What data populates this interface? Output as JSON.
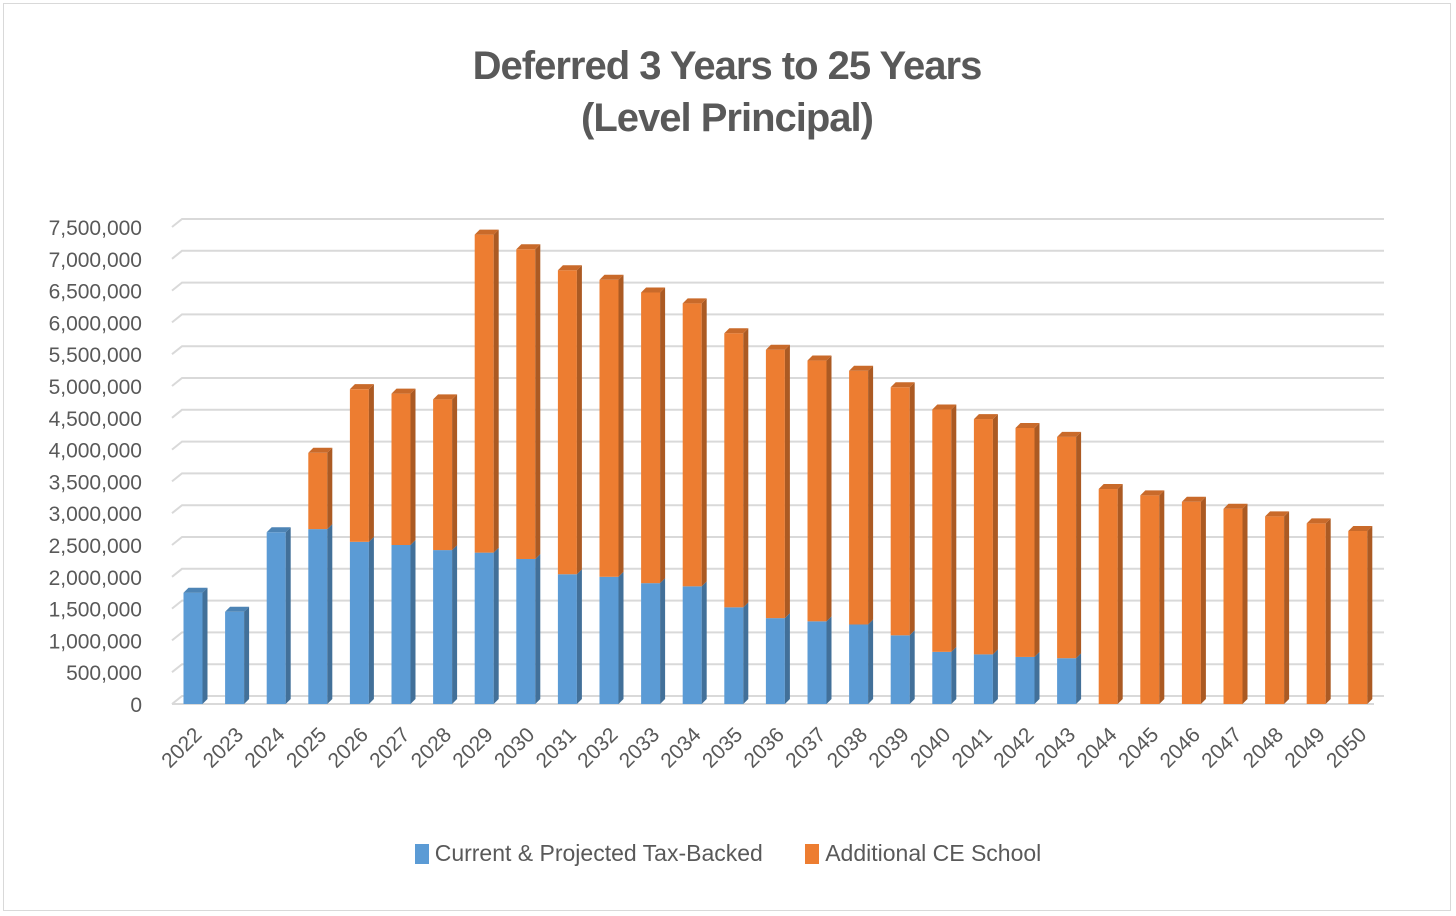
{
  "chart_data": {
    "type": "bar",
    "stacked": true,
    "title": "Deferred 3 Years to 25 Years",
    "subtitle": "(Level Principal)",
    "categories": [
      "2022",
      "2023",
      "2024",
      "2025",
      "2026",
      "2027",
      "2028",
      "2029",
      "2030",
      "2031",
      "2032",
      "2033",
      "2034",
      "2035",
      "2036",
      "2037",
      "2038",
      "2039",
      "2040",
      "2041",
      "2042",
      "2043",
      "2044",
      "2045",
      "2046",
      "2047",
      "2048",
      "2049",
      "2050"
    ],
    "series": [
      {
        "name": "Current & Projected Tax-Backed",
        "color": "#5b9bd5",
        "values": [
          1750000,
          1450000,
          2700000,
          2750000,
          2550000,
          2500000,
          2420000,
          2380000,
          2280000,
          2040000,
          2000000,
          1900000,
          1850000,
          1520000,
          1350000,
          1300000,
          1250000,
          1080000,
          820000,
          780000,
          740000,
          720000,
          0,
          0,
          0,
          0,
          0,
          0,
          0
        ]
      },
      {
        "name": "Additional CE School",
        "color": "#ed7d31",
        "values": [
          0,
          0,
          0,
          1200000,
          2400000,
          2380000,
          2370000,
          5000000,
          4870000,
          4780000,
          4670000,
          4570000,
          4450000,
          4310000,
          4220000,
          4100000,
          3990000,
          3900000,
          3810000,
          3700000,
          3600000,
          3480000,
          3380000,
          3280000,
          3180000,
          3070000,
          2950000,
          2840000,
          2720000
        ]
      }
    ],
    "ylim": [
      0,
      7500000
    ],
    "ytick_step": 500000,
    "ytick_labels": [
      "0",
      "500,000",
      "1,000,000",
      "1,500,000",
      "2,000,000",
      "2,500,000",
      "3,000,000",
      "3,500,000",
      "4,000,000",
      "4,500,000",
      "5,000,000",
      "5,500,000",
      "6,000,000",
      "6,500,000",
      "7,000,000",
      "7,500,000"
    ],
    "xlabel": "",
    "ylabel": "",
    "grid": true,
    "legend_position": "bottom"
  }
}
